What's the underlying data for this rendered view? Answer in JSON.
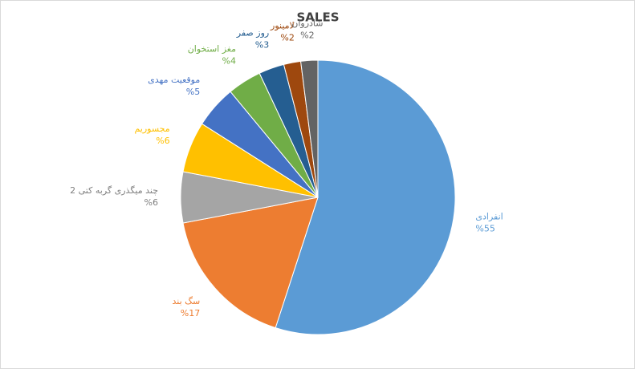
{
  "chart_data": {
    "type": "pie",
    "title": "SALES",
    "categories": [
      "انفرادی",
      "سگ بند",
      "چند میگذری گربه کتی 2",
      "مجسوریم",
      "موقعیت مهدی",
      "مغز استخوان",
      "روز صفر",
      "لامینور",
      "شادروان"
    ],
    "values": [
      55,
      17,
      6,
      6,
      5,
      4,
      3,
      2,
      2
    ],
    "value_labels": [
      "%55",
      "%17",
      "%6",
      "%6",
      "%5",
      "%4",
      "%3",
      "%2",
      "%2"
    ],
    "colors": [
      "#5b9bd5",
      "#ed7d31",
      "#a5a5a5",
      "#ffc000",
      "#4472c4",
      "#70ad47",
      "#255e91",
      "#9e480e",
      "#636363"
    ]
  }
}
